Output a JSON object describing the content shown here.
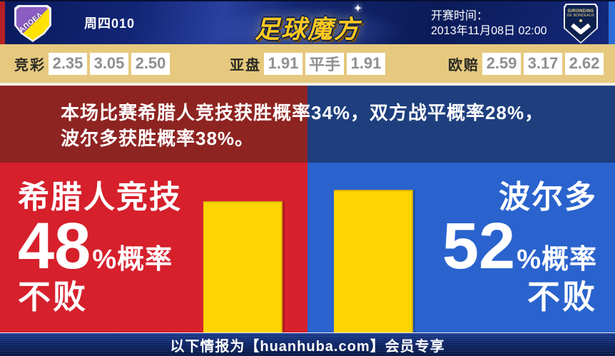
{
  "header": {
    "match_code": "周四010",
    "brand": "足球魔方",
    "kickoff_label": "开赛时间：",
    "kickoff_time": "2013年11月08日 02:00",
    "home_badge_text": "ΑΠΟΕΛ",
    "away_badge_line1": "GIRONDINS",
    "away_badge_line2": "DE BORDEAUX"
  },
  "odds": {
    "jingcai_label": "竞彩",
    "jingcai": [
      "2.35",
      "3.05",
      "2.50"
    ],
    "yapan_label": "亚盘",
    "yapan": [
      "1.91",
      "平手",
      "1.91"
    ],
    "oupei_label": "欧赔",
    "oupei": [
      "2.59",
      "3.17",
      "2.62"
    ]
  },
  "banner": {
    "line1": "本场比赛希腊人竞技获胜概率34%，双方战平概率28%，",
    "line2": "波尔多获胜概率38%。"
  },
  "panels": {
    "home": {
      "name": "希腊人竞技",
      "percent": "48",
      "suffix": "%概率",
      "result": "不败"
    },
    "away": {
      "name": "波尔多",
      "percent": "52",
      "suffix": "%概率",
      "result": "不败"
    }
  },
  "footer": {
    "text": "以下情报为【huanhuba.com】会员专享"
  },
  "chart_data": {
    "type": "bar",
    "categories": [
      "希腊人竞技",
      "波尔多"
    ],
    "values": [
      48,
      52
    ],
    "unit": "%",
    "title": "",
    "ylim": [
      0,
      62
    ],
    "bar_color": "#ffd400",
    "legend": "none",
    "grid": false
  },
  "colors": {
    "header_bg": "#101f6e",
    "left_edge_accent": "#b32026",
    "right_edge_accent": "#2e6cd6",
    "odds_bg": "#e6c97e",
    "odds_value_text": "#8f8f8f",
    "banner_home": "#8e2422",
    "banner_away": "#1e3e7e",
    "main_home": "#d6202c",
    "main_away": "#2a63cd",
    "bar_fill": "#ffd400",
    "brand_gold": "#ffc81e",
    "footer_bg": "#0d2568"
  }
}
